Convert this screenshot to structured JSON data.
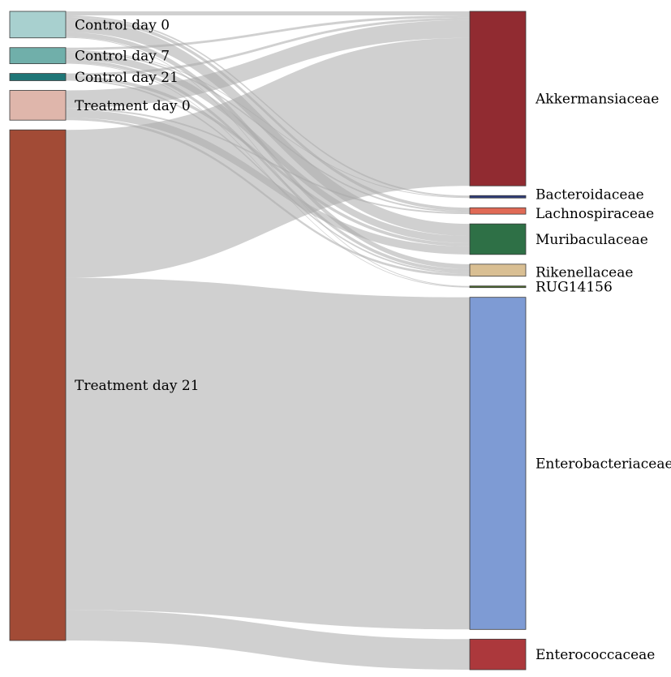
{
  "sankey": {
    "sources": [
      {
        "id": "c0",
        "label": "Control day 0",
        "color": "#a8d0cf"
      },
      {
        "id": "c7",
        "label": "Control day 7",
        "color": "#70afaa"
      },
      {
        "id": "c21",
        "label": "Control day 21",
        "color": "#1f7677"
      },
      {
        "id": "t0",
        "label": "Treatment day 0",
        "color": "#dfb6ab"
      },
      {
        "id": "t21",
        "label": "Treatment day 21",
        "color": "#a24b36"
      }
    ],
    "targets": [
      {
        "id": "akk",
        "label": "Akkermansiaceae",
        "color": "#912b31"
      },
      {
        "id": "bac",
        "label": "Bacteroidaceae",
        "color": "#2f3d7a"
      },
      {
        "id": "lac",
        "label": "Lachnospiraceae",
        "color": "#e06a56"
      },
      {
        "id": "mur",
        "label": "Muribaculaceae",
        "color": "#2e7046"
      },
      {
        "id": "rik",
        "label": "Rikenellaceae",
        "color": "#d9bf93"
      },
      {
        "id": "rug",
        "label": "RUG14156",
        "color": "#4e6e2d"
      },
      {
        "id": "ent",
        "label": "Enterobacteriaceae",
        "color": "#7e9bd4"
      },
      {
        "id": "enc",
        "label": "Enterococcaceae",
        "color": "#ac383c"
      }
    ],
    "flows": [
      {
        "source": "c0",
        "target": "akk",
        "value": 5
      },
      {
        "source": "c0",
        "target": "bac",
        "value": 2
      },
      {
        "source": "c0",
        "target": "lac",
        "value": 4
      },
      {
        "source": "c0",
        "target": "mur",
        "value": 15
      },
      {
        "source": "c0",
        "target": "rik",
        "value": 6
      },
      {
        "source": "c0",
        "target": "rug",
        "value": 1
      },
      {
        "source": "c7",
        "target": "akk",
        "value": 3
      },
      {
        "source": "c7",
        "target": "bac",
        "value": 1
      },
      {
        "source": "c7",
        "target": "lac",
        "value": 2
      },
      {
        "source": "c7",
        "target": "mur",
        "value": 9
      },
      {
        "source": "c7",
        "target": "rik",
        "value": 4
      },
      {
        "source": "c7",
        "target": "rug",
        "value": 1
      },
      {
        "source": "c21",
        "target": "akk",
        "value": 3
      },
      {
        "source": "c21",
        "target": "mur",
        "value": 4
      },
      {
        "source": "c21",
        "target": "rik",
        "value": 2
      },
      {
        "source": "t0",
        "target": "akk",
        "value": 22
      },
      {
        "source": "t0",
        "target": "lac",
        "value": 2
      },
      {
        "source": "t0",
        "target": "mur",
        "value": 10
      },
      {
        "source": "t0",
        "target": "rik",
        "value": 3
      },
      {
        "source": "t21",
        "target": "akk",
        "value": 184
      },
      {
        "source": "t21",
        "target": "ent",
        "value": 413
      },
      {
        "source": "t21",
        "target": "enc",
        "value": 38
      }
    ]
  }
}
